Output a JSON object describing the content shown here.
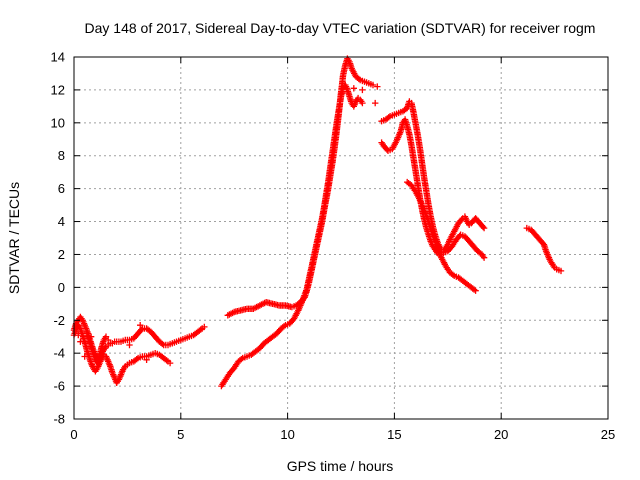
{
  "chart_data": {
    "type": "scatter",
    "title": "Day 148 of 2017, Sidereal Day-to-day VTEC variation (SDTVAR) for receiver rogm",
    "xlabel": "GPS time / hours",
    "ylabel": "SDTVAR / TECUs",
    "xlim": [
      0,
      25
    ],
    "ylim": [
      -8,
      14
    ],
    "xticks": [
      0,
      5,
      10,
      15,
      20,
      25
    ],
    "yticks": [
      -8,
      -6,
      -4,
      -2,
      0,
      2,
      4,
      6,
      8,
      10,
      12,
      14
    ],
    "grid": true,
    "marker": "+",
    "color": "#ff0000",
    "segments": [
      {
        "name": "arc-1a",
        "points": [
          [
            0.0,
            -2.6
          ],
          [
            0.1,
            -2.2
          ],
          [
            0.2,
            -2.0
          ],
          [
            0.3,
            -1.8
          ],
          [
            0.4,
            -2.0
          ],
          [
            0.5,
            -2.3
          ],
          [
            0.6,
            -2.6
          ],
          [
            0.7,
            -3.0
          ],
          [
            0.8,
            -3.4
          ],
          [
            0.9,
            -3.8
          ],
          [
            1.0,
            -4.1
          ],
          [
            1.1,
            -4.3
          ],
          [
            1.2,
            -4.2
          ],
          [
            1.3,
            -4.0
          ],
          [
            1.4,
            -3.8
          ],
          [
            1.5,
            -3.6
          ],
          [
            1.6,
            -3.5
          ],
          [
            1.7,
            -3.4
          ],
          [
            1.8,
            -3.4
          ],
          [
            1.9,
            -3.3
          ],
          [
            2.0,
            -3.3
          ],
          [
            2.2,
            -3.3
          ],
          [
            2.4,
            -3.2
          ],
          [
            2.6,
            -3.2
          ],
          [
            2.8,
            -3.1
          ],
          [
            3.0,
            -2.8
          ],
          [
            3.2,
            -2.5
          ],
          [
            3.4,
            -2.5
          ],
          [
            3.6,
            -2.7
          ],
          [
            3.8,
            -3.0
          ],
          [
            4.0,
            -3.3
          ],
          [
            4.2,
            -3.5
          ],
          [
            4.4,
            -3.5
          ],
          [
            4.6,
            -3.4
          ],
          [
            4.8,
            -3.3
          ],
          [
            5.0,
            -3.2
          ],
          [
            5.2,
            -3.1
          ],
          [
            5.4,
            -3.0
          ],
          [
            5.6,
            -2.9
          ],
          [
            5.8,
            -2.7
          ],
          [
            6.0,
            -2.5
          ],
          [
            6.1,
            -2.4
          ]
        ]
      },
      {
        "name": "arc-1b",
        "points": [
          [
            0.0,
            -2.9
          ],
          [
            0.1,
            -2.6
          ],
          [
            0.2,
            -2.3
          ],
          [
            0.3,
            -2.5
          ],
          [
            0.4,
            -2.9
          ],
          [
            0.5,
            -3.3
          ],
          [
            0.6,
            -3.8
          ],
          [
            0.7,
            -4.2
          ],
          [
            0.8,
            -4.6
          ],
          [
            0.9,
            -4.9
          ],
          [
            1.0,
            -5.1
          ],
          [
            1.1,
            -4.9
          ],
          [
            1.2,
            -4.6
          ],
          [
            1.3,
            -4.3
          ],
          [
            1.4,
            -4.1
          ],
          [
            1.5,
            -4.2
          ],
          [
            1.6,
            -4.5
          ],
          [
            1.7,
            -4.8
          ],
          [
            1.8,
            -5.2
          ],
          [
            1.9,
            -5.5
          ],
          [
            2.0,
            -5.8
          ],
          [
            2.1,
            -5.6
          ],
          [
            2.2,
            -5.3
          ],
          [
            2.3,
            -5.0
          ],
          [
            2.4,
            -4.8
          ],
          [
            2.5,
            -4.7
          ],
          [
            2.6,
            -4.6
          ],
          [
            2.8,
            -4.5
          ],
          [
            3.0,
            -4.3
          ],
          [
            3.2,
            -4.2
          ],
          [
            3.4,
            -4.2
          ],
          [
            3.6,
            -4.1
          ],
          [
            3.8,
            -4.0
          ],
          [
            4.0,
            -4.1
          ],
          [
            4.2,
            -4.3
          ],
          [
            4.4,
            -4.5
          ],
          [
            4.5,
            -4.6
          ]
        ]
      },
      {
        "name": "arc-1c",
        "points": [
          [
            0.6,
            -2.8
          ],
          [
            0.7,
            -3.2
          ],
          [
            0.8,
            -3.6
          ],
          [
            0.9,
            -4.0
          ],
          [
            1.0,
            -4.4
          ],
          [
            1.1,
            -4.6
          ],
          [
            1.2,
            -4.1
          ],
          [
            1.3,
            -3.6
          ],
          [
            1.4,
            -3.2
          ],
          [
            1.5,
            -3.0
          ]
        ]
      },
      {
        "name": "arc-2",
        "points": [
          [
            7.2,
            -1.7
          ],
          [
            7.5,
            -1.5
          ],
          [
            7.8,
            -1.4
          ],
          [
            8.1,
            -1.3
          ],
          [
            8.4,
            -1.3
          ],
          [
            8.7,
            -1.1
          ],
          [
            9.0,
            -0.9
          ],
          [
            9.3,
            -1.0
          ],
          [
            9.6,
            -1.1
          ],
          [
            9.9,
            -1.1
          ],
          [
            10.2,
            -1.2
          ],
          [
            10.4,
            -1.1
          ],
          [
            10.6,
            -0.9
          ],
          [
            10.8,
            -0.6
          ],
          [
            10.9,
            -0.2
          ],
          [
            11.0,
            0.3
          ],
          [
            11.1,
            0.9
          ],
          [
            11.2,
            1.5
          ],
          [
            11.3,
            2.1
          ],
          [
            11.4,
            2.7
          ],
          [
            11.5,
            3.3
          ],
          [
            11.6,
            3.9
          ],
          [
            11.7,
            4.6
          ],
          [
            11.8,
            5.3
          ],
          [
            11.9,
            6.0
          ],
          [
            12.0,
            6.8
          ],
          [
            12.1,
            7.6
          ],
          [
            12.2,
            8.5
          ],
          [
            12.3,
            9.5
          ],
          [
            12.4,
            10.6
          ],
          [
            12.5,
            11.8
          ],
          [
            12.6,
            12.9
          ],
          [
            12.7,
            13.5
          ],
          [
            12.8,
            13.9
          ],
          [
            12.9,
            13.7
          ],
          [
            13.0,
            13.3
          ],
          [
            13.2,
            12.8
          ],
          [
            13.4,
            12.6
          ],
          [
            13.6,
            12.5
          ],
          [
            13.8,
            12.4
          ],
          [
            14.0,
            12.3
          ]
        ]
      },
      {
        "name": "arc-3",
        "points": [
          [
            6.9,
            -6.0
          ],
          [
            7.1,
            -5.6
          ],
          [
            7.3,
            -5.2
          ],
          [
            7.5,
            -4.9
          ],
          [
            7.7,
            -4.5
          ],
          [
            7.9,
            -4.3
          ],
          [
            8.1,
            -4.2
          ],
          [
            8.3,
            -4.1
          ],
          [
            8.5,
            -3.9
          ],
          [
            8.7,
            -3.7
          ],
          [
            8.9,
            -3.4
          ],
          [
            9.1,
            -3.2
          ],
          [
            9.3,
            -3.0
          ],
          [
            9.5,
            -2.8
          ],
          [
            9.7,
            -2.5
          ],
          [
            9.9,
            -2.3
          ],
          [
            10.1,
            -2.2
          ],
          [
            10.3,
            -1.9
          ],
          [
            10.5,
            -1.4
          ],
          [
            10.7,
            -0.8
          ],
          [
            10.9,
            -0.1
          ],
          [
            11.0,
            0.5
          ],
          [
            11.1,
            1.1
          ],
          [
            11.2,
            1.7
          ],
          [
            11.3,
            2.3
          ],
          [
            11.4,
            2.9
          ],
          [
            11.5,
            3.5
          ],
          [
            11.6,
            4.1
          ],
          [
            11.7,
            4.8
          ],
          [
            11.8,
            5.6
          ],
          [
            11.9,
            6.4
          ],
          [
            12.0,
            7.3
          ],
          [
            12.1,
            8.2
          ],
          [
            12.2,
            9.1
          ],
          [
            12.3,
            10.0
          ],
          [
            12.4,
            10.8
          ],
          [
            12.5,
            11.6
          ],
          [
            12.6,
            12.1
          ],
          [
            12.7,
            12.3
          ],
          [
            12.8,
            12.0
          ],
          [
            12.9,
            11.6
          ],
          [
            13.0,
            11.2
          ],
          [
            13.1,
            11.0
          ],
          [
            13.2,
            11.3
          ],
          [
            13.3,
            11.5
          ],
          [
            13.4,
            11.4
          ],
          [
            13.5,
            11.2
          ]
        ]
      },
      {
        "name": "arc-4",
        "points": [
          [
            14.4,
            10.1
          ],
          [
            14.6,
            10.2
          ],
          [
            14.8,
            10.4
          ],
          [
            15.0,
            10.5
          ],
          [
            15.2,
            10.6
          ],
          [
            15.4,
            10.7
          ],
          [
            15.6,
            10.9
          ],
          [
            15.7,
            11.3
          ],
          [
            15.8,
            11.2
          ],
          [
            15.9,
            10.6
          ],
          [
            16.0,
            9.9
          ],
          [
            16.1,
            9.2
          ],
          [
            16.2,
            8.4
          ],
          [
            16.3,
            7.5
          ],
          [
            16.4,
            6.6
          ],
          [
            16.5,
            5.8
          ],
          [
            16.6,
            5.0
          ],
          [
            16.7,
            4.3
          ],
          [
            16.8,
            3.7
          ],
          [
            16.9,
            3.2
          ],
          [
            17.0,
            2.8
          ],
          [
            17.1,
            2.5
          ],
          [
            17.2,
            2.3
          ],
          [
            17.3,
            2.2
          ],
          [
            17.4,
            2.4
          ],
          [
            17.5,
            2.6
          ],
          [
            17.6,
            2.9
          ],
          [
            17.8,
            3.4
          ],
          [
            18.0,
            3.9
          ],
          [
            18.2,
            4.2
          ],
          [
            18.3,
            4.3
          ],
          [
            18.4,
            4.0
          ],
          [
            18.5,
            3.8
          ],
          [
            18.6,
            3.9
          ],
          [
            18.8,
            4.2
          ],
          [
            19.0,
            3.9
          ],
          [
            19.2,
            3.6
          ]
        ]
      },
      {
        "name": "arc-5",
        "points": [
          [
            14.4,
            8.8
          ],
          [
            14.5,
            8.6
          ],
          [
            14.7,
            8.3
          ],
          [
            14.9,
            8.4
          ],
          [
            15.1,
            8.9
          ],
          [
            15.3,
            9.5
          ],
          [
            15.4,
            10.0
          ],
          [
            15.5,
            10.2
          ],
          [
            15.6,
            9.8
          ],
          [
            15.7,
            9.3
          ],
          [
            15.8,
            8.6
          ],
          [
            15.9,
            7.8
          ],
          [
            16.0,
            7.0
          ],
          [
            16.1,
            6.2
          ],
          [
            16.2,
            5.4
          ],
          [
            16.3,
            4.7
          ],
          [
            16.4,
            4.1
          ],
          [
            16.5,
            3.6
          ],
          [
            16.6,
            3.2
          ],
          [
            16.7,
            2.8
          ],
          [
            16.8,
            2.5
          ],
          [
            16.9,
            2.3
          ],
          [
            17.0,
            2.1
          ],
          [
            17.1,
            2.0
          ],
          [
            17.2,
            2.0
          ],
          [
            17.3,
            2.1
          ],
          [
            17.5,
            2.2
          ],
          [
            17.7,
            2.5
          ],
          [
            17.9,
            2.9
          ],
          [
            18.1,
            3.2
          ],
          [
            18.3,
            3.1
          ],
          [
            18.5,
            2.8
          ],
          [
            18.7,
            2.5
          ],
          [
            18.9,
            2.2
          ],
          [
            19.1,
            2.0
          ],
          [
            19.2,
            1.8
          ]
        ]
      },
      {
        "name": "arc-6",
        "points": [
          [
            15.6,
            6.4
          ],
          [
            15.8,
            6.2
          ],
          [
            16.0,
            5.8
          ],
          [
            16.2,
            5.3
          ],
          [
            16.4,
            4.7
          ],
          [
            16.6,
            4.0
          ],
          [
            16.8,
            3.2
          ],
          [
            17.0,
            2.4
          ],
          [
            17.2,
            1.8
          ],
          [
            17.4,
            1.3
          ],
          [
            17.6,
            0.9
          ],
          [
            17.8,
            0.7
          ],
          [
            18.0,
            0.6
          ],
          [
            18.2,
            0.4
          ],
          [
            18.4,
            0.2
          ],
          [
            18.6,
            0.0
          ],
          [
            18.8,
            -0.2
          ]
        ]
      },
      {
        "name": "arc-7",
        "points": [
          [
            21.2,
            3.6
          ],
          [
            21.4,
            3.5
          ],
          [
            21.6,
            3.2
          ],
          [
            21.8,
            2.9
          ],
          [
            22.0,
            2.6
          ],
          [
            22.1,
            2.2
          ],
          [
            22.2,
            1.9
          ],
          [
            22.3,
            1.6
          ],
          [
            22.4,
            1.4
          ],
          [
            22.5,
            1.2
          ],
          [
            22.6,
            1.1
          ],
          [
            22.8,
            1.0
          ]
        ]
      }
    ],
    "scattered_points": [
      [
        0.2,
        -2.9
      ],
      [
        0.3,
        -3.3
      ],
      [
        0.5,
        -4.2
      ],
      [
        0.8,
        -3.0
      ],
      [
        1.3,
        -3.7
      ],
      [
        1.6,
        -3.2
      ],
      [
        2.6,
        -3.5
      ],
      [
        3.1,
        -2.3
      ],
      [
        3.4,
        -4.4
      ],
      [
        13.1,
        12.1
      ],
      [
        13.5,
        12.0
      ],
      [
        14.1,
        11.2
      ],
      [
        14.2,
        12.2
      ]
    ]
  }
}
